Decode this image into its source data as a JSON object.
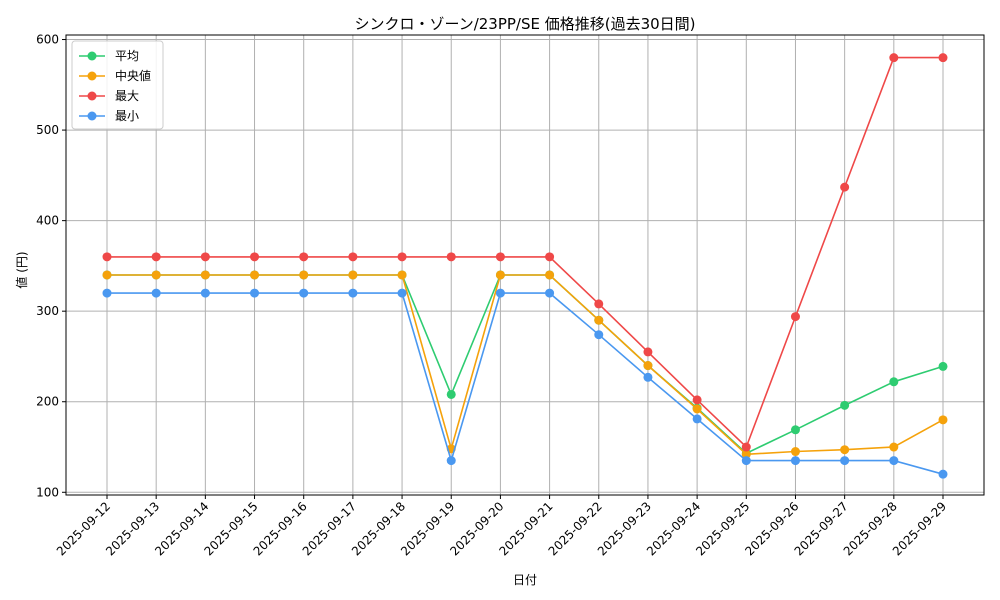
{
  "chart_data": {
    "type": "line",
    "title": "シンクロ・ゾーン/23PP/SE 価格推移(過去30日間)",
    "xlabel": "日付",
    "ylabel": "値 (円)",
    "ylim": [
      97,
      605
    ],
    "yticks": [
      100,
      200,
      300,
      400,
      500,
      600
    ],
    "grid": true,
    "legend_position": "top-left",
    "categories": [
      "2025-09-12",
      "2025-09-13",
      "2025-09-14",
      "2025-09-15",
      "2025-09-16",
      "2025-09-17",
      "2025-09-18",
      "2025-09-19",
      "2025-09-20",
      "2025-09-21",
      "2025-09-22",
      "2025-09-23",
      "2025-09-24",
      "2025-09-25",
      "2025-09-26",
      "2025-09-27",
      "2025-09-28",
      "2025-09-29"
    ],
    "series": [
      {
        "name": "平均",
        "color": "#2ecc71",
        "values": [
          340,
          340,
          340,
          340,
          340,
          340,
          340,
          208,
          340,
          340,
          290,
          240,
          193,
          143,
          169,
          196,
          222,
          239
        ]
      },
      {
        "name": "中央値",
        "color": "#f5a20b",
        "values": [
          340,
          340,
          340,
          340,
          340,
          340,
          340,
          148,
          340,
          340,
          290,
          240,
          192,
          142,
          145,
          147,
          150,
          180
        ]
      },
      {
        "name": "最大",
        "color": "#ef4848",
        "values": [
          360,
          360,
          360,
          360,
          360,
          360,
          360,
          360,
          360,
          360,
          308,
          255,
          202,
          150,
          294,
          437,
          580,
          580
        ]
      },
      {
        "name": "最小",
        "color": "#4a98f0",
        "values": [
          320,
          320,
          320,
          320,
          320,
          320,
          320,
          135,
          320,
          320,
          274,
          227,
          181,
          135,
          135,
          135,
          135,
          120
        ]
      }
    ]
  }
}
